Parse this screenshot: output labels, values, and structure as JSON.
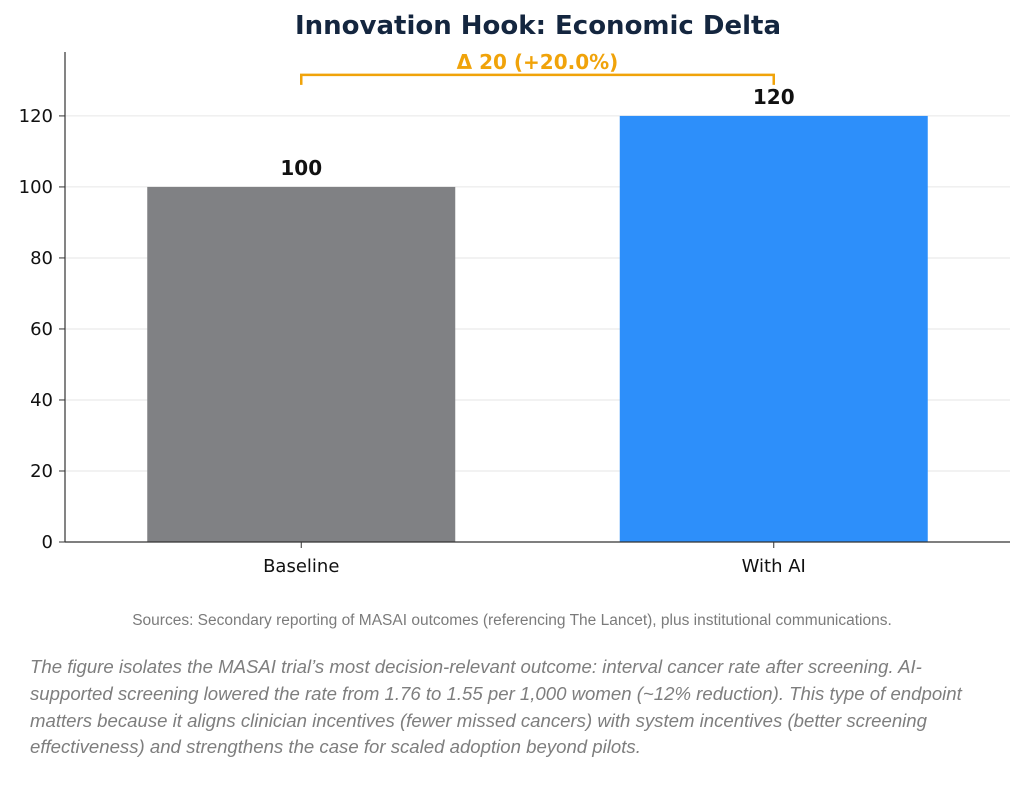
{
  "chart_data": {
    "type": "bar",
    "title": "Innovation Hook: Economic Delta",
    "categories": [
      "Baseline",
      "With AI"
    ],
    "values": [
      100,
      120
    ],
    "value_labels": [
      "100",
      "120"
    ],
    "bar_colors": [
      "#808184",
      "#2d8ffa"
    ],
    "ylim": [
      0,
      138
    ],
    "yticks": [
      0,
      20,
      40,
      60,
      80,
      100,
      120
    ],
    "grid": true,
    "annotation": {
      "text": "Δ 20 (+20.0%)",
      "color": "#f0a30a"
    }
  },
  "sources": "Sources: Secondary reporting of MASAI outcomes (referencing The Lancet), plus institutional communications.",
  "caption": "The figure isolates the MASAI trial’s most decision-relevant outcome: interval cancer rate after screening. AI-supported screening lowered the rate from 1.76 to 1.55 per 1,000 women (~12% reduction). This type of endpoint matters because it aligns clinician incentives (fewer missed cancers) with system incentives (better screening effectiveness) and strengthens the case for scaled adoption beyond pilots."
}
